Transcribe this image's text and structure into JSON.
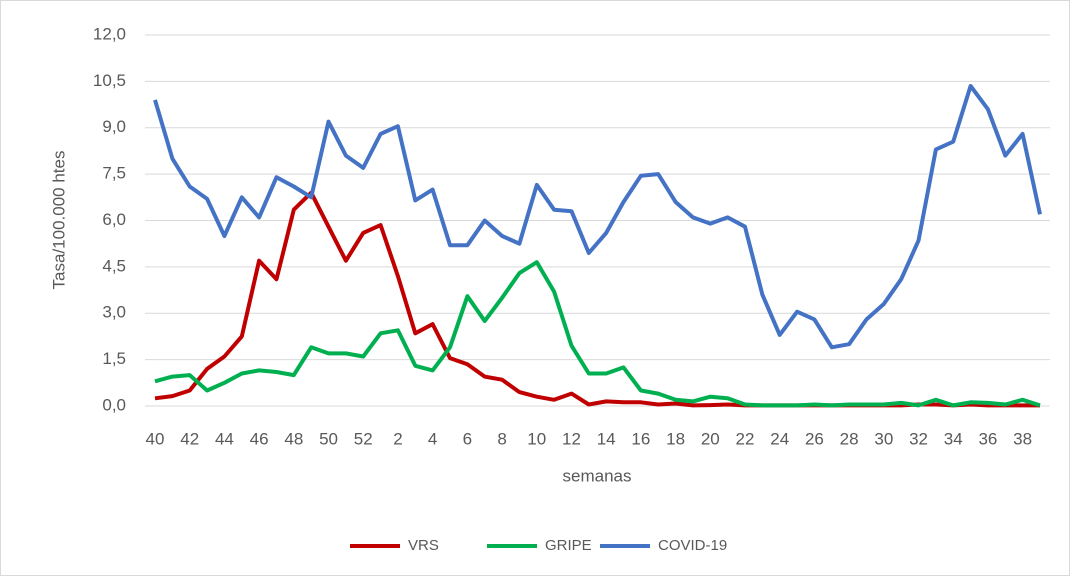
{
  "chart_data": {
    "type": "line",
    "y_label": "Tasa/100.000 htes",
    "x_label": "semanas",
    "categories": [
      40,
      null,
      42,
      null,
      44,
      null,
      46,
      null,
      48,
      null,
      50,
      null,
      52,
      null,
      2,
      null,
      4,
      null,
      6,
      null,
      8,
      null,
      10,
      null,
      12,
      null,
      14,
      null,
      16,
      null,
      18,
      null,
      20,
      null,
      22,
      null,
      24,
      null,
      26,
      null,
      28,
      null,
      30,
      null,
      32,
      null,
      34,
      null,
      36,
      null,
      38,
      null
    ],
    "ylim": [
      0,
      12
    ],
    "yticks": [
      {
        "value": 0,
        "label": "0,0"
      },
      {
        "value": 1.5,
        "label": "1,5"
      },
      {
        "value": 3,
        "label": "3,0"
      },
      {
        "value": 4.5,
        "label": "4,5"
      },
      {
        "value": 6,
        "label": "6,0"
      },
      {
        "value": 7.5,
        "label": "7,5"
      },
      {
        "value": 9,
        "label": "9,0"
      },
      {
        "value": 10.5,
        "label": "10,5"
      },
      {
        "value": 12,
        "label": "12,0"
      }
    ],
    "grid": true,
    "legend": "bottom",
    "series": [
      {
        "name": "VRS",
        "color": "#c00000",
        "values": [
          0.25,
          0.32,
          0.5,
          1.2,
          1.6,
          2.25,
          4.7,
          4.1,
          6.35,
          6.9,
          5.8,
          4.7,
          5.6,
          5.85,
          4.2,
          2.35,
          2.65,
          1.55,
          1.35,
          0.95,
          0.85,
          0.45,
          0.3,
          0.2,
          0.4,
          0.05,
          0.15,
          0.12,
          0.12,
          0.05,
          0.08,
          0.02,
          0.03,
          0.05,
          0.02,
          0.02,
          0.02,
          0.02,
          0.02,
          0.02,
          0.02,
          0.02,
          0.02,
          0.02,
          0.05,
          0.05,
          0.02,
          0.05,
          0.02,
          0.02,
          0.02,
          0.02
        ]
      },
      {
        "name": "GRIPE",
        "color": "#00b050",
        "values": [
          0.8,
          0.95,
          1.0,
          0.5,
          0.75,
          1.05,
          1.15,
          1.1,
          1.0,
          1.9,
          1.7,
          1.7,
          1.6,
          2.35,
          2.45,
          1.3,
          1.15,
          1.9,
          3.55,
          2.75,
          3.5,
          4.3,
          4.65,
          3.7,
          1.95,
          1.05,
          1.05,
          1.25,
          0.5,
          0.4,
          0.2,
          0.15,
          0.3,
          0.25,
          0.05,
          0.02,
          0.02,
          0.02,
          0.05,
          0.02,
          0.05,
          0.05,
          0.05,
          0.1,
          0.02,
          0.2,
          0.02,
          0.12,
          0.1,
          0.05,
          0.2,
          0.02
        ]
      },
      {
        "name": "COVID-19",
        "color": "#4472c4",
        "values": [
          9.9,
          8.0,
          7.1,
          6.7,
          5.5,
          6.75,
          6.1,
          7.4,
          7.1,
          6.75,
          9.2,
          8.1,
          7.7,
          8.8,
          9.05,
          6.65,
          7.0,
          5.2,
          5.2,
          6.0,
          5.5,
          5.25,
          7.15,
          6.35,
          6.3,
          4.95,
          5.6,
          6.6,
          7.45,
          7.5,
          6.6,
          6.1,
          5.9,
          6.1,
          5.8,
          3.6,
          2.3,
          3.05,
          2.8,
          1.9,
          2.0,
          2.8,
          3.3,
          4.1,
          5.35,
          8.3,
          8.55,
          10.35,
          9.6,
          8.1,
          8.8,
          6.2
        ]
      }
    ]
  }
}
